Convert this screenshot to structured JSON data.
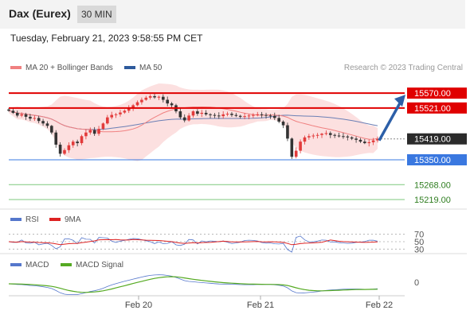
{
  "header": {
    "title": "Dax (Eurex)",
    "timeframe": "30 MIN"
  },
  "timestamp": "Tuesday, February 21, 2023 9:58:55 PM CET",
  "legend": {
    "ma20": "MA 20 + Bollinger Bands",
    "ma50": "MA 50",
    "copyright": "Research © 2023 Trading Central"
  },
  "rsi_legend": {
    "rsi": "RSI",
    "ma9": "9MA"
  },
  "macd_legend": {
    "macd": "MACD",
    "signal": "MACD Signal"
  },
  "colors": {
    "ma20": "#f08080",
    "ma50": "#2e5a9c",
    "bollinger": "#fbd5d5",
    "resistance": "#e00000",
    "support": "#3a78e0",
    "target": "#7cc87c",
    "up": "#e23b3b",
    "down": "#333333",
    "rsi": "#5577cc",
    "rsi_ma": "#dd2222",
    "macd": "#5577cc",
    "signal": "#55aa22",
    "arrow": "#2c5fa8"
  },
  "chart_data": [
    {
      "type": "candlestick",
      "title": "Dax (Eurex) 30 MIN",
      "x_ticks": [
        "Feb 20",
        "Feb 21",
        "Feb 22"
      ],
      "ylim": [
        15190,
        15615
      ],
      "levels": [
        {
          "label": "15570.00",
          "value": 15570,
          "kind": "resistance"
        },
        {
          "label": "15521.00",
          "value": 15521,
          "kind": "resistance"
        },
        {
          "label": "15419.00",
          "value": 15419,
          "kind": "last"
        },
        {
          "label": "15350.00",
          "value": 15350,
          "kind": "support"
        },
        {
          "label": "15268.00",
          "value": 15268,
          "kind": "target"
        },
        {
          "label": "15219.00",
          "value": 15219,
          "kind": "target"
        }
      ],
      "close": [
        15512,
        15505,
        15496,
        15500,
        15492,
        15486,
        15488,
        15478,
        15470,
        15462,
        15440,
        15400,
        15370,
        15382,
        15398,
        15410,
        15405,
        15428,
        15440,
        15448,
        15436,
        15452,
        15470,
        15490,
        15498,
        15500,
        15506,
        15512,
        15520,
        15530,
        15540,
        15548,
        15555,
        15560,
        15556,
        15558,
        15548,
        15536,
        15530,
        15510,
        15490,
        15480,
        15496,
        15510,
        15502,
        15505,
        15500,
        15498,
        15496,
        15494,
        15500,
        15502,
        15498,
        15495,
        15492,
        15494,
        15496,
        15498,
        15500,
        15498,
        15496,
        15495,
        15488,
        15476,
        15464,
        15420,
        15360,
        15380,
        15410,
        15424,
        15428,
        15430,
        15432,
        15436,
        15438,
        15432,
        15430,
        15428,
        15427,
        15424,
        15420,
        15416,
        15410,
        15405,
        15408,
        15414,
        15419
      ],
      "direction_arrow": "up toward 15570.00"
    },
    {
      "type": "line",
      "title": "RSI",
      "series": [
        {
          "name": "RSI"
        },
        {
          "name": "9MA"
        }
      ],
      "levels": [
        "70",
        "50",
        "30"
      ]
    },
    {
      "type": "line",
      "title": "MACD",
      "series": [
        {
          "name": "MACD"
        },
        {
          "name": "MACD Signal"
        }
      ],
      "levels": [
        "0"
      ]
    }
  ]
}
